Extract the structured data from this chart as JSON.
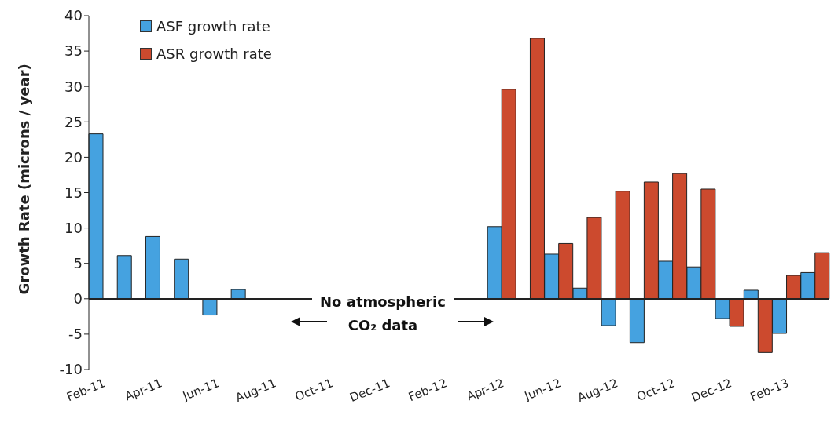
{
  "chart_data": {
    "type": "bar",
    "ylabel": "Growth Rate (microns / year)",
    "categories": [
      "Feb-11",
      null,
      "Apr-11",
      null,
      "Jun-11",
      null,
      "Aug-11",
      null,
      "Oct-11",
      null,
      "Dec-11",
      null,
      "Feb-12",
      null,
      "Apr-12",
      null,
      "Jun-12",
      null,
      "Aug-12",
      null,
      "Oct-12",
      null,
      "Dec-12",
      null,
      "Feb-13",
      null
    ],
    "series": [
      {
        "name": "ASF growth rate",
        "color": "#45a2e0",
        "values": [
          23.3,
          6.1,
          8.8,
          5.6,
          -2.3,
          1.3,
          null,
          null,
          null,
          null,
          null,
          null,
          null,
          null,
          10.2,
          null,
          6.3,
          1.5,
          -3.8,
          -6.2,
          5.3,
          4.5,
          -2.8,
          1.2,
          -4.9,
          3.7
        ]
      },
      {
        "name": "ASR growth rate",
        "color": "#cc4a2e",
        "values": [
          null,
          null,
          null,
          null,
          null,
          null,
          null,
          null,
          null,
          null,
          null,
          null,
          null,
          null,
          29.6,
          36.8,
          7.8,
          11.5,
          15.2,
          16.5,
          17.7,
          15.5,
          -3.9,
          -7.6,
          3.3,
          6.5
        ]
      }
    ],
    "ylim": [
      -10,
      40
    ],
    "yticks": [
      -10,
      -5,
      0,
      5,
      10,
      15,
      20,
      25,
      30,
      35,
      40
    ],
    "annotations": [
      "No atmospheric CO₂ data"
    ],
    "grid": false,
    "legend": "top left"
  }
}
